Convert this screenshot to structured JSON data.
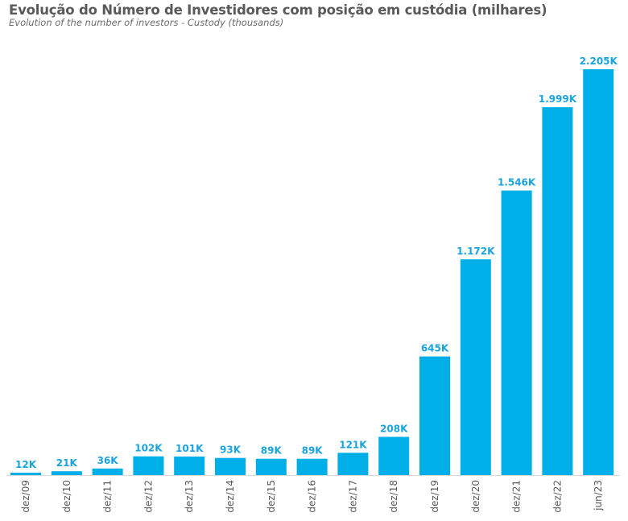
{
  "chart_data": {
    "type": "bar",
    "title": "Evolução do Número de Investidores com posição em custódia (milhares)",
    "subtitle": "Evolution of the number of investors - Custody (thousands)",
    "xlabel": "",
    "ylabel": "",
    "categories": [
      "dez/09",
      "dez/10",
      "dez/11",
      "dez/12",
      "dez/13",
      "dez/14",
      "dez/15",
      "dez/16",
      "dez/17",
      "dez/18",
      "dez/19",
      "dez/20",
      "dez/21",
      "dez/22",
      "jun/23"
    ],
    "values": [
      12,
      21,
      36,
      102,
      101,
      93,
      89,
      89,
      121,
      208,
      645,
      1172,
      1546,
      1999,
      2205
    ],
    "data_labels": [
      "12K",
      "21K",
      "36K",
      "102K",
      "101K",
      "93K",
      "89K",
      "89K",
      "121K",
      "208K",
      "645K",
      "1.172K",
      "1.546K",
      "1.999K",
      "2.205K"
    ],
    "ylim": [
      0,
      2205
    ],
    "grid": false,
    "legend": "none",
    "bar_color": "#00aee8",
    "label_color": "#1aa3dc"
  }
}
